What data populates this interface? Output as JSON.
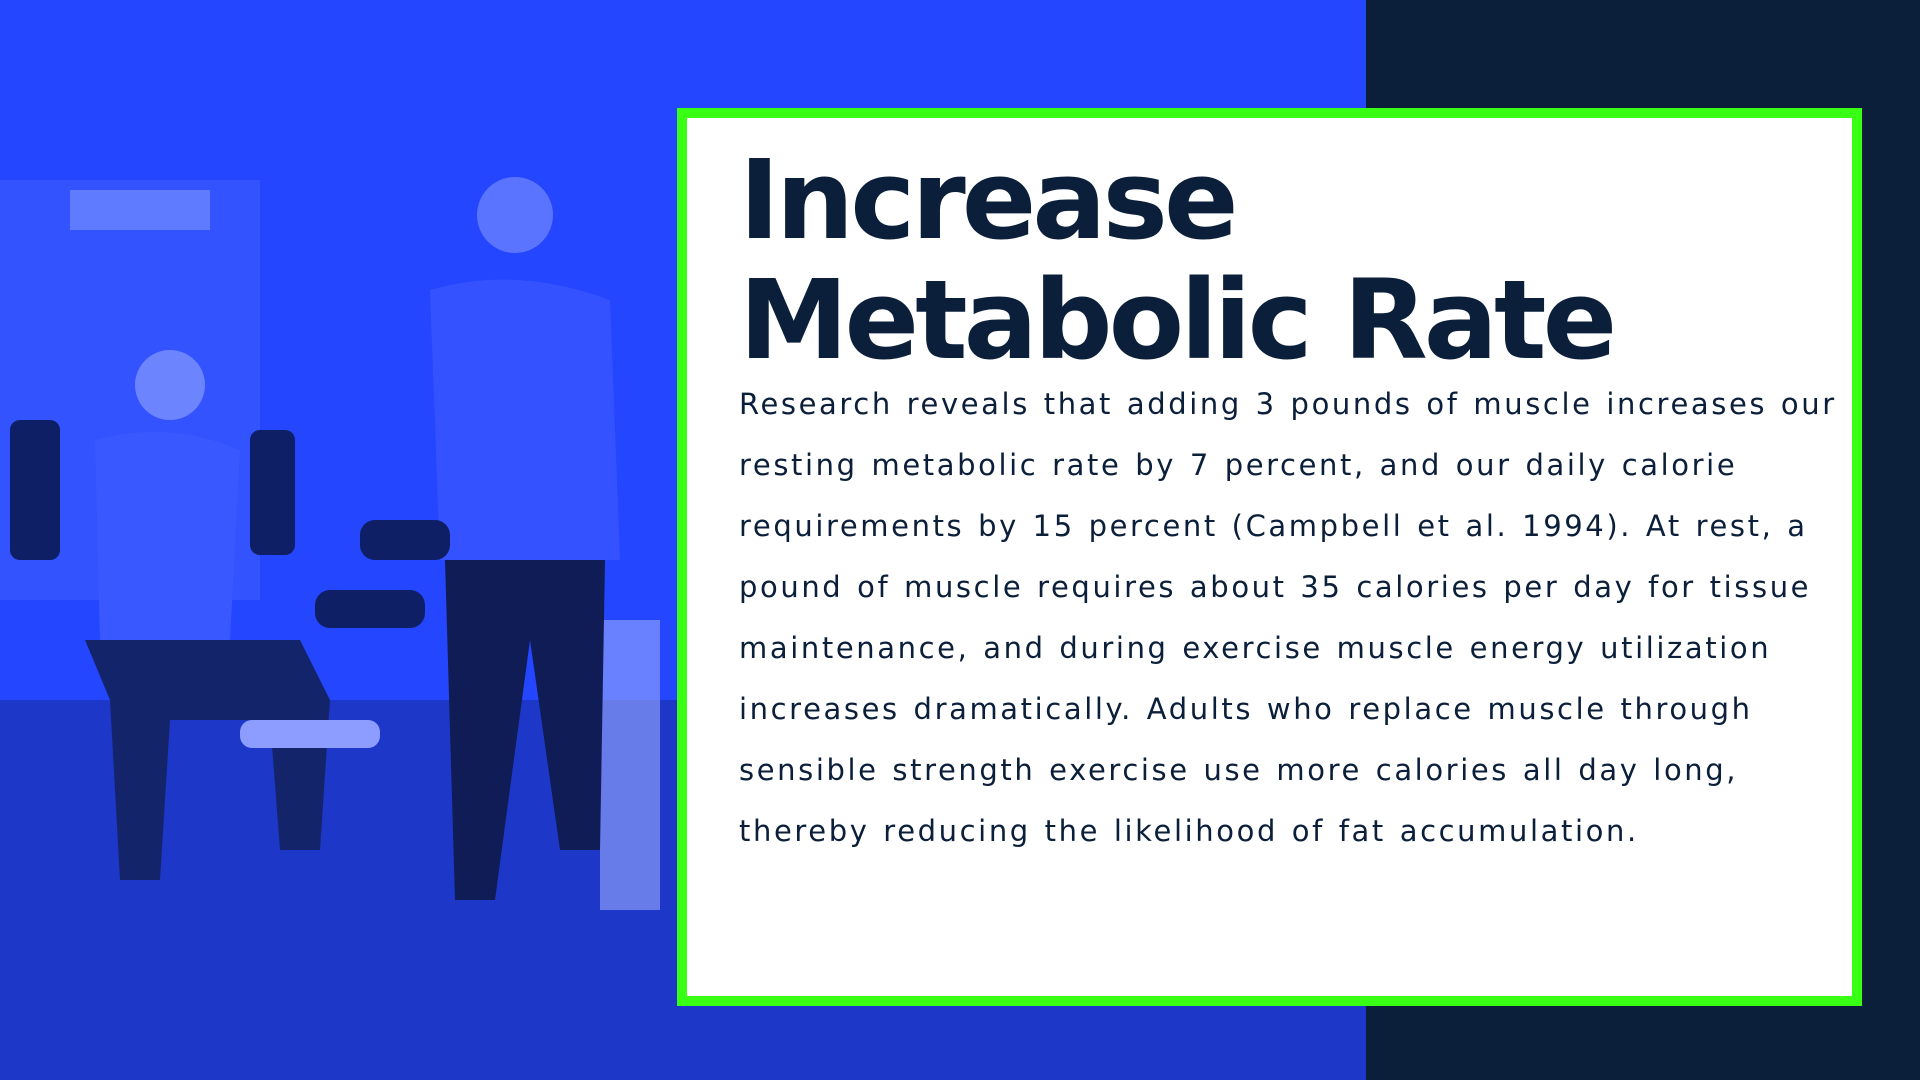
{
  "slide": {
    "title": "Increase Metabolic Rate",
    "body": "Research reveals that adding 3 pounds of muscle increases our resting metabolic rate by 7 percent, and our daily calorie requirements by 15 percent (Campbell et al. 1994). At rest, a pound of muscle requires about 35 calories per day for tissue maintenance, and during exercise muscle energy utilization increases dramatically. Adults who replace muscle through sensible strength exercise use more calories all day long, thereby reducing the likelihood of fat accumulation."
  }
}
